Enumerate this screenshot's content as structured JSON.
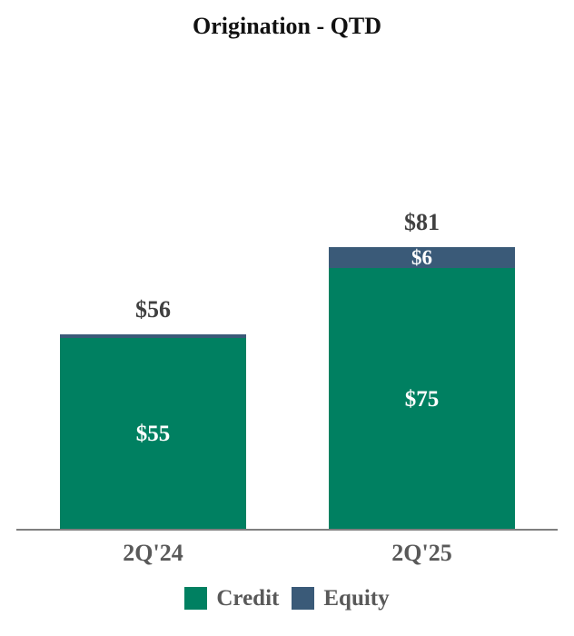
{
  "chart_data": {
    "type": "bar",
    "stacked": true,
    "title": "Origination - QTD",
    "categories": [
      "2Q'24",
      "2Q'25"
    ],
    "series": [
      {
        "name": "Credit",
        "color": "#008061",
        "values": [
          55,
          75
        ],
        "value_labels": [
          "$55",
          "$75"
        ]
      },
      {
        "name": "Equity",
        "color": "#3A5A78",
        "values": [
          1,
          6
        ],
        "value_labels": [
          "",
          "$6"
        ]
      }
    ],
    "totals": [
      56,
      81
    ],
    "total_labels": [
      "$56",
      "$81"
    ],
    "y_axis_visible": false,
    "gridlines": false,
    "legend_position": "bottom",
    "axis_line_color": "#7f7f7f",
    "total_label_color": "#404040",
    "axis_label_color": "#595959"
  }
}
